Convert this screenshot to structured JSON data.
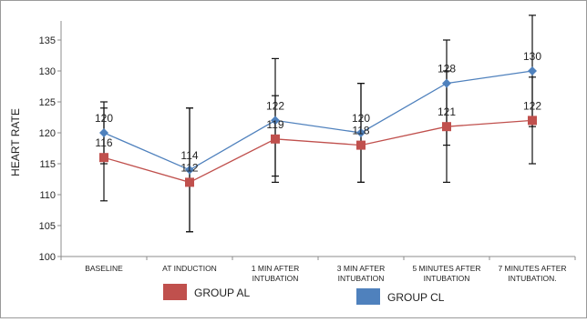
{
  "chart_data": {
    "type": "line",
    "title": "",
    "xlabel": "",
    "ylabel": "HEART RATE",
    "ylim": [
      100,
      135
    ],
    "yticks": [
      100,
      105,
      110,
      115,
      120,
      125,
      130,
      135
    ],
    "grid": false,
    "legend_position": "bottom",
    "categories": [
      [
        "BASELINE"
      ],
      [
        "AT INDUCTION"
      ],
      [
        "1 MIN AFTER",
        "INTUBATION"
      ],
      [
        "3 MIN AFTER",
        "INTUBATION"
      ],
      [
        "5 MINUTES AFTER",
        "INTUBATION"
      ],
      [
        "7 MINUTES AFTER",
        "INTUBATION."
      ]
    ],
    "series": [
      {
        "name": "GROUP AL",
        "color": "#c0504d",
        "marker": "square",
        "values": [
          116,
          112,
          119,
          118,
          121,
          122
        ],
        "labels": [
          "116",
          "112",
          "119",
          "118",
          "121",
          "122"
        ],
        "error_low": [
          109,
          104,
          112,
          112,
          112,
          115
        ],
        "error_high": [
          124,
          124,
          126,
          128,
          130,
          129
        ]
      },
      {
        "name": "GROUP CL",
        "color": "#4f81bd",
        "marker": "diamond",
        "values": [
          120,
          114,
          122,
          120,
          128,
          130
        ],
        "labels": [
          "120",
          "114",
          "122",
          "120",
          "128",
          "130"
        ],
        "error_low": [
          115,
          104,
          113,
          112,
          118,
          121
        ],
        "error_high": [
          125,
          124,
          132,
          128,
          135,
          139
        ]
      }
    ]
  }
}
